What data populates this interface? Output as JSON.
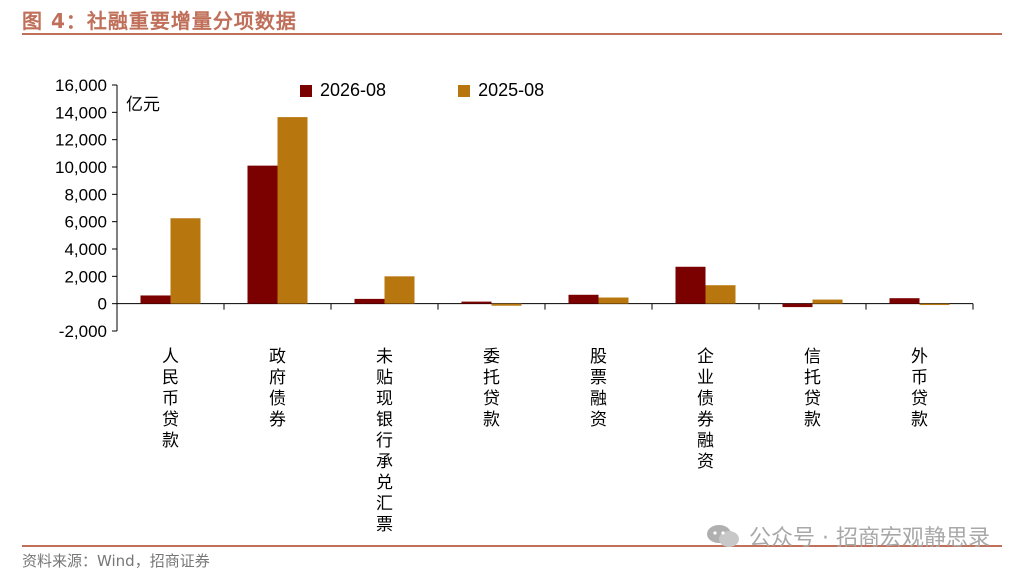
{
  "figure": {
    "title": "图 4：社融重要增量分项数据",
    "source": "资料来源：Wind，招商证券",
    "watermark": "公众号 · 招商宏观静思录",
    "unit": "亿元"
  },
  "colors": {
    "series_2026": "#7b0000",
    "series_2025": "#b8760f",
    "accent": "#c0705a"
  },
  "chart_data": {
    "type": "bar",
    "categories": [
      "人民币贷款",
      "政府债券",
      "未贴现银行承兑汇票",
      "委托贷款",
      "股票融资",
      "企业债券融资",
      "信托贷款",
      "外币贷款"
    ],
    "series": [
      {
        "name": "2026-08",
        "values": [
          600,
          10100,
          350,
          150,
          650,
          2700,
          -250,
          400
        ]
      },
      {
        "name": "2025-08",
        "values": [
          6250,
          13650,
          2000,
          -150,
          450,
          1350,
          300,
          -100
        ]
      }
    ],
    "ylim": [
      -2000,
      16000
    ],
    "yticks": [
      "-2,000",
      "0",
      "2,000",
      "4,000",
      "6,000",
      "8,000",
      "10,000",
      "12,000",
      "14,000",
      "16,000"
    ],
    "ytick_values": [
      -2000,
      0,
      2000,
      4000,
      6000,
      8000,
      10000,
      12000,
      14000,
      16000
    ],
    "legend_position": "top"
  }
}
